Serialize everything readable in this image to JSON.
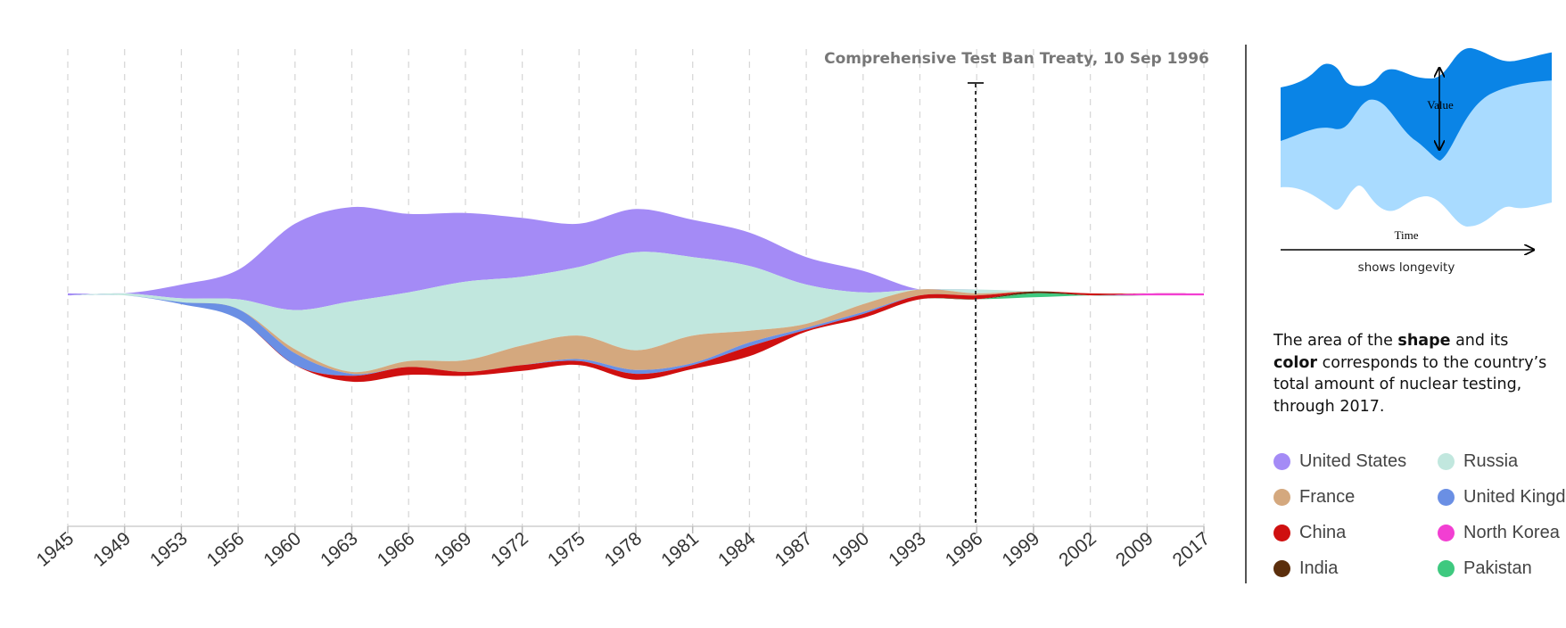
{
  "chart_data": {
    "type": "area",
    "subtype": "streamgraph",
    "x": [
      "1945",
      "1949",
      "1953",
      "1956",
      "1960",
      "1963",
      "1966",
      "1969",
      "1972",
      "1975",
      "1978",
      "1981",
      "1984",
      "1987",
      "1990",
      "1993",
      "1996",
      "1999",
      "2002",
      "2009",
      "2017"
    ],
    "series": [
      {
        "name": "United States",
        "key": "us",
        "color": "#a48bf6",
        "values": [
          1,
          0,
          7,
          15,
          44,
          48,
          40,
          35,
          30,
          22,
          22,
          19,
          17,
          14,
          11,
          0,
          0,
          0,
          0,
          0,
          0
        ]
      },
      {
        "name": "Russia",
        "key": "ru",
        "color": "#c1e7de",
        "values": [
          0,
          1,
          2,
          5,
          20,
          36,
          35,
          40,
          35,
          35,
          50,
          40,
          33,
          20,
          6,
          0,
          2,
          0,
          0,
          0,
          0
        ]
      },
      {
        "name": "France",
        "key": "fr",
        "color": "#d4a87e",
        "values": [
          0,
          0,
          0,
          0,
          2,
          1,
          3,
          6,
          10,
          12,
          10,
          14,
          6,
          2,
          4,
          3,
          1,
          0,
          0,
          0,
          0
        ]
      },
      {
        "name": "United Kingdom",
        "key": "uk",
        "color": "#6a8fe4",
        "values": [
          0,
          0,
          1,
          5,
          6,
          1,
          0,
          0,
          0,
          1,
          2,
          1,
          2,
          1,
          1,
          0,
          0,
          0,
          0,
          0,
          0
        ]
      },
      {
        "name": "China",
        "key": "cn",
        "color": "#cf1010",
        "values": [
          0,
          0,
          0,
          0,
          0,
          3,
          4,
          2,
          3,
          2,
          3,
          2,
          5,
          1,
          2,
          2,
          2,
          0,
          1,
          0,
          0
        ]
      },
      {
        "name": "North Korea",
        "key": "nk",
        "color": "#f23fd2",
        "values": [
          0,
          0,
          0,
          0,
          0,
          0,
          0,
          0,
          0,
          0,
          0,
          0,
          0,
          0,
          0,
          0,
          0,
          0,
          0,
          1,
          1
        ]
      },
      {
        "name": "India",
        "key": "in",
        "color": "#5b2e0c",
        "values": [
          0,
          0,
          0,
          0,
          0,
          0,
          0,
          0,
          0,
          0,
          0,
          0,
          0,
          0,
          0,
          0,
          0,
          1,
          0,
          0,
          0
        ]
      },
      {
        "name": "Pakistan",
        "key": "pk",
        "color": "#3ec97f",
        "values": [
          0,
          0,
          0,
          0,
          0,
          0,
          0,
          0,
          0,
          0,
          0,
          0,
          0,
          0,
          0,
          0,
          0,
          2,
          0,
          0,
          0
        ]
      }
    ],
    "annotation": {
      "label": "Comprehensive Test Ban Treaty, 10 Sep 1996",
      "at": "1996"
    },
    "grid": true
  },
  "explainer": {
    "value_label": "Value",
    "time_label": "Time",
    "caption": "shows longevity",
    "colors": {
      "dark": "#0a84e6",
      "light": "#a9dbff"
    }
  },
  "description": {
    "p1": "The area of the ",
    "b1": "shape",
    "p2": " and its ",
    "b2": "color",
    "p3": " corresponds to the country’s total amount of nuclear testing, through 2017."
  },
  "legend": [
    {
      "name": "United States",
      "color": "#a48bf6"
    },
    {
      "name": "Russia",
      "color": "#c1e7de"
    },
    {
      "name": "France",
      "color": "#d4a87e"
    },
    {
      "name": "United Kingdom",
      "color": "#6a8fe4"
    },
    {
      "name": "China",
      "color": "#cf1010"
    },
    {
      "name": "North Korea",
      "color": "#f23fd2"
    },
    {
      "name": "India",
      "color": "#5b2e0c"
    },
    {
      "name": "Pakistan",
      "color": "#3ec97f"
    }
  ]
}
